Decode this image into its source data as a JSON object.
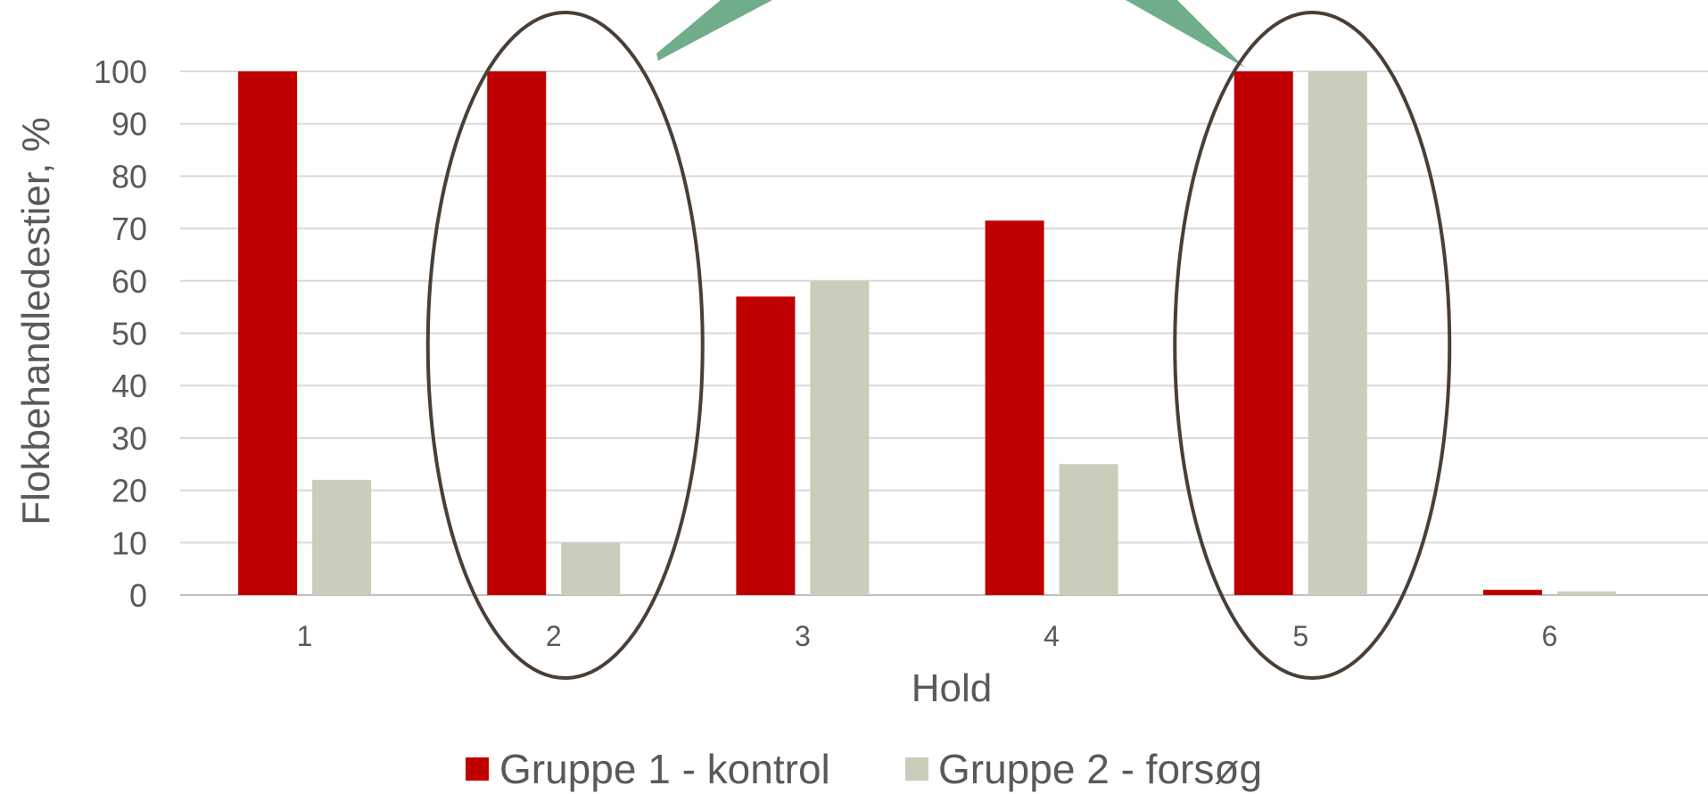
{
  "chart_data": {
    "type": "bar",
    "xlabel": "Hold",
    "ylabel": "Flokbehandledestier, %",
    "ylim": [
      0,
      100
    ],
    "yticks": [
      0,
      10,
      20,
      30,
      40,
      50,
      60,
      70,
      80,
      90,
      100
    ],
    "categories": [
      "1",
      "2",
      "3",
      "4",
      "5",
      "6"
    ],
    "series": [
      {
        "name": "Gruppe 1 - kontrol",
        "color": "#C00000",
        "values": [
          100,
          100,
          57,
          71.5,
          100,
          1
        ]
      },
      {
        "name": "Gruppe 2 - forsøg",
        "color": "#CCCCBB",
        "values": [
          22,
          10,
          60,
          25,
          100,
          0.7
        ]
      }
    ],
    "grid": true,
    "legend_position": "bottom",
    "annotations": [
      {
        "type": "ellipse",
        "around_category": "2",
        "color": "#4A3F35"
      },
      {
        "type": "ellipse",
        "around_category": "5",
        "color": "#4A3F35"
      },
      {
        "type": "callout-arrows",
        "color": "#70AD8A"
      }
    ]
  }
}
